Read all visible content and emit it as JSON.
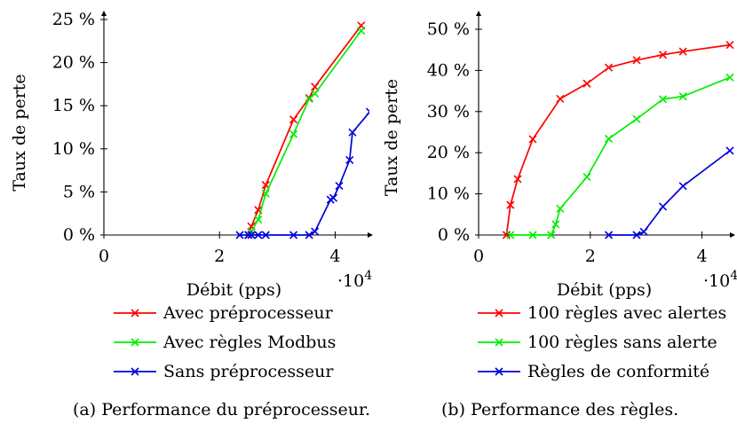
{
  "chart_data": [
    {
      "type": "line",
      "caption": "(a) Performance du préprocesseur.",
      "xlabel": "Débit (pps)",
      "ylabel": "Taux de perte",
      "x_multiplier_label": "·10",
      "x_multiplier_exp": "4",
      "xlim": [
        0,
        4.5
      ],
      "ylim": [
        0,
        25
      ],
      "xticks": [
        0,
        2,
        4
      ],
      "xtick_labels": [
        "0",
        "2",
        "4"
      ],
      "yticks": [
        0,
        5,
        10,
        15,
        20,
        25
      ],
      "ytick_labels": [
        "0 %",
        "5 %",
        "10 %",
        "15 %",
        "20 %",
        "25 %"
      ],
      "legend_position": "below",
      "series": [
        {
          "name": "Avec préprocesseur",
          "color": "#ff0000",
          "x": [
            2.5,
            2.55,
            2.67,
            2.8,
            3.28,
            3.55,
            3.65,
            4.45
          ],
          "y": [
            0,
            1,
            2.9,
            5.8,
            13.4,
            15.9,
            17.2,
            24.3
          ]
        },
        {
          "name": "Avec règles Modbus",
          "color": "#00ee00",
          "x": [
            2.5,
            2.55,
            2.67,
            2.8,
            3.28,
            3.55,
            3.65,
            4.45
          ],
          "y": [
            0,
            0.4,
            1.8,
            4.8,
            11.7,
            15.8,
            16.4,
            23.7
          ]
        },
        {
          "name": "Sans préprocesseur",
          "color": "#0000dd",
          "x": [
            2.35,
            2.5,
            2.55,
            2.67,
            2.8,
            3.28,
            3.55,
            3.65,
            3.92,
            3.97,
            4.07,
            4.25,
            4.3,
            4.6
          ],
          "y": [
            0,
            0,
            0,
            0,
            0,
            0,
            0,
            0.4,
            4.1,
            4.3,
            5.7,
            8.7,
            11.9,
            14.3
          ]
        }
      ]
    },
    {
      "type": "line",
      "caption": "(b) Performance des règles.",
      "xlabel": "Débit (pps)",
      "ylabel": "Taux de perte",
      "x_multiplier_label": "·10",
      "x_multiplier_exp": "4",
      "xlim": [
        0,
        4.5
      ],
      "ylim": [
        0,
        50
      ],
      "xticks": [
        0,
        2,
        4
      ],
      "xtick_labels": [
        "0",
        "2",
        "4"
      ],
      "yticks": [
        0,
        10,
        20,
        30,
        40,
        50
      ],
      "ytick_labels": [
        "0 %",
        "10 %",
        "20 %",
        "30 %",
        "40 %",
        "50 %"
      ],
      "legend_position": "below",
      "series": [
        {
          "name": "100 règles avec alertes",
          "color": "#ff0000",
          "x": [
            0.5,
            0.57,
            0.7,
            0.97,
            1.46,
            1.94,
            2.33,
            2.83,
            3.3,
            3.66,
            4.5
          ],
          "y": [
            0,
            7.3,
            13.6,
            23.3,
            33.1,
            36.8,
            40.7,
            42.5,
            43.8,
            44.6,
            46.2
          ]
        },
        {
          "name": "100 règles sans alerte",
          "color": "#00ee00",
          "x": [
            0.57,
            0.97,
            1.3,
            1.38,
            1.46,
            1.94,
            2.33,
            2.83,
            3.3,
            3.66,
            4.5
          ],
          "y": [
            0,
            0,
            0,
            2.6,
            6.4,
            14.1,
            23.4,
            28.2,
            33,
            33.7,
            38.3
          ]
        },
        {
          "name": "Règles de conformité",
          "color": "#0000dd",
          "x": [
            2.33,
            2.83,
            2.96,
            3.3,
            3.66,
            4.5
          ],
          "y": [
            0,
            0,
            0.8,
            6.9,
            11.9,
            20.5
          ]
        }
      ]
    }
  ]
}
